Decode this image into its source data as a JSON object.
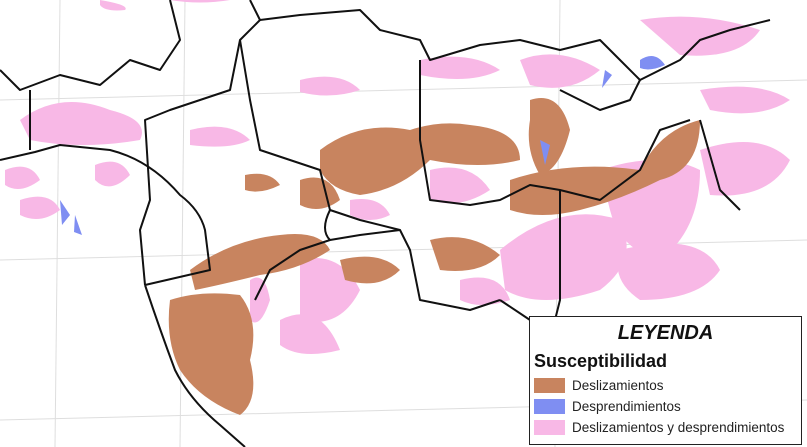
{
  "legend": {
    "title": "LEYENDA",
    "subtitle": "Susceptibilidad",
    "items": [
      {
        "label": "Deslizamientos",
        "color": "#c8845f"
      },
      {
        "label": "Desprendimientos",
        "color": "#7f8ef2"
      },
      {
        "label": "Deslizamientos y desprendimientos",
        "color": "#f8b8e6"
      }
    ]
  },
  "colors": {
    "borders": "#111111",
    "grid": "#dddddd",
    "background": "#ffffff"
  }
}
